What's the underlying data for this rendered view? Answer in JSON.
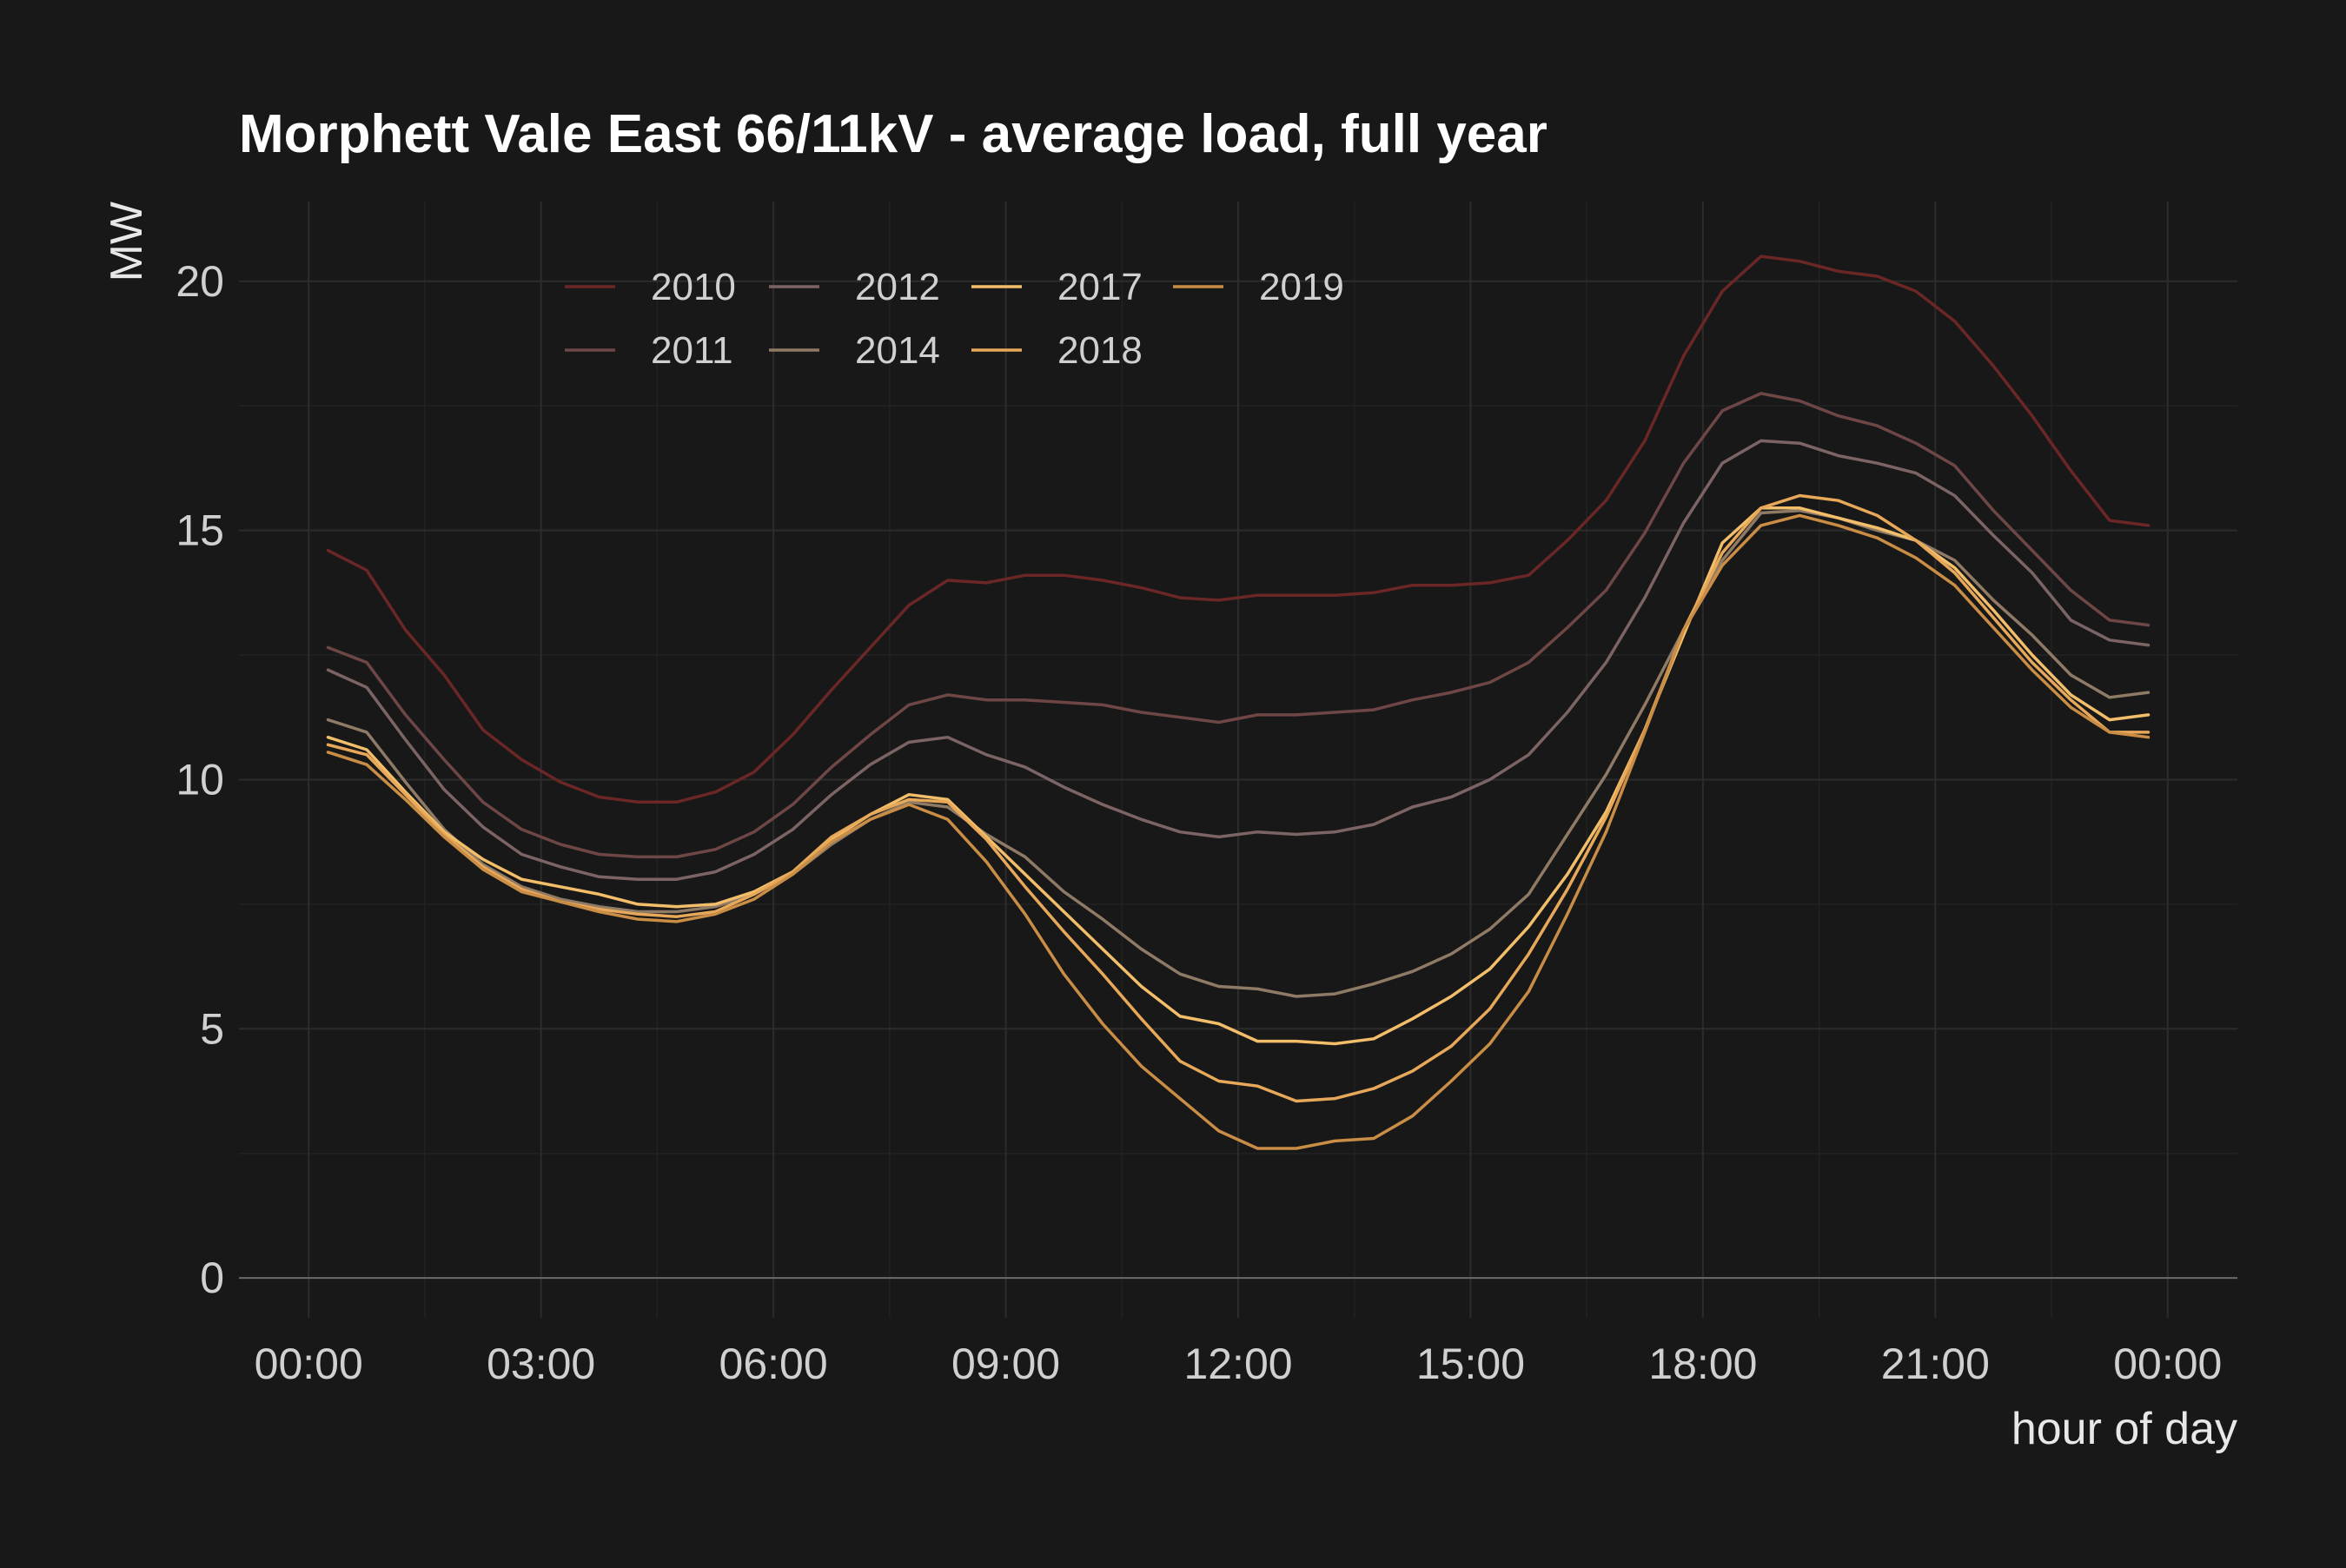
{
  "chart_data": {
    "type": "line",
    "title": "Morphett Vale East 66/11kV - average load, full year",
    "xlabel": "hour of day",
    "ylabel": "MW",
    "xlim": [
      -0.9,
      24.9
    ],
    "ylim": [
      -0.8,
      21.6
    ],
    "x_ticks": [
      {
        "value": 0,
        "label": "00:00"
      },
      {
        "value": 3,
        "label": "03:00"
      },
      {
        "value": 6,
        "label": "06:00"
      },
      {
        "value": 9,
        "label": "09:00"
      },
      {
        "value": 12,
        "label": "12:00"
      },
      {
        "value": 15,
        "label": "15:00"
      },
      {
        "value": 18,
        "label": "18:00"
      },
      {
        "value": 21,
        "label": "21:00"
      },
      {
        "value": 24,
        "label": "00:00"
      }
    ],
    "y_ticks": [
      {
        "value": 0,
        "label": "0"
      },
      {
        "value": 5,
        "label": "5"
      },
      {
        "value": 10,
        "label": "10"
      },
      {
        "value": 15,
        "label": "15"
      },
      {
        "value": 20,
        "label": "20"
      }
    ],
    "grid": true,
    "legend_position": "top-left",
    "x": [
      0.25,
      0.75,
      1.25,
      1.75,
      2.25,
      2.75,
      3.25,
      3.75,
      4.25,
      4.75,
      5.25,
      5.75,
      6.25,
      6.75,
      7.25,
      7.75,
      8.25,
      8.75,
      9.25,
      9.75,
      10.25,
      10.75,
      11.25,
      11.75,
      12.25,
      12.75,
      13.25,
      13.75,
      14.25,
      14.75,
      15.25,
      15.75,
      16.25,
      16.75,
      17.25,
      17.75,
      18.25,
      18.75,
      19.25,
      19.75,
      20.25,
      20.75,
      21.25,
      21.75,
      22.25,
      22.75,
      23.25,
      23.75
    ],
    "series": [
      {
        "name": "2010",
        "color": "#6b2626",
        "values": [
          14.6,
          14.2,
          13.0,
          12.1,
          11.0,
          10.4,
          9.95,
          9.65,
          9.55,
          9.55,
          9.75,
          10.15,
          10.9,
          11.8,
          12.65,
          13.5,
          14.0,
          13.95,
          14.1,
          14.1,
          14.0,
          13.85,
          13.65,
          13.6,
          13.7,
          13.7,
          13.7,
          13.75,
          13.9,
          13.9,
          13.95,
          14.1,
          14.8,
          15.6,
          16.8,
          18.5,
          19.8,
          20.5,
          20.4,
          20.2,
          20.1,
          19.8,
          19.2,
          18.3,
          17.3,
          16.2,
          15.2,
          15.1
        ]
      },
      {
        "name": "2011",
        "color": "#6e4646",
        "values": [
          12.65,
          12.35,
          11.3,
          10.4,
          9.55,
          9.0,
          8.7,
          8.5,
          8.45,
          8.45,
          8.6,
          8.95,
          9.5,
          10.25,
          10.9,
          11.5,
          11.7,
          11.6,
          11.6,
          11.55,
          11.5,
          11.35,
          11.25,
          11.15,
          11.3,
          11.3,
          11.35,
          11.4,
          11.6,
          11.75,
          11.95,
          12.35,
          13.05,
          13.8,
          14.95,
          16.35,
          17.4,
          17.75,
          17.6,
          17.3,
          17.1,
          16.75,
          16.3,
          15.4,
          14.6,
          13.8,
          13.2,
          13.1
        ]
      },
      {
        "name": "2012",
        "color": "#7c6464",
        "values": [
          12.2,
          11.85,
          10.8,
          9.8,
          9.05,
          8.5,
          8.25,
          8.05,
          8.0,
          8.0,
          8.15,
          8.5,
          9.0,
          9.7,
          10.3,
          10.75,
          10.85,
          10.5,
          10.25,
          9.85,
          9.5,
          9.2,
          8.95,
          8.85,
          8.95,
          8.9,
          8.95,
          9.1,
          9.45,
          9.65,
          10.0,
          10.5,
          11.35,
          12.35,
          13.65,
          15.15,
          16.35,
          16.8,
          16.75,
          16.5,
          16.35,
          16.15,
          15.7,
          14.9,
          14.15,
          13.2,
          12.8,
          12.7
        ]
      },
      {
        "name": "2014",
        "color": "#8f7a66",
        "values": [
          11.2,
          10.95,
          9.95,
          9.0,
          8.3,
          7.85,
          7.6,
          7.45,
          7.35,
          7.35,
          7.45,
          7.7,
          8.1,
          8.7,
          9.2,
          9.55,
          9.45,
          8.9,
          8.45,
          7.75,
          7.2,
          6.6,
          6.1,
          5.85,
          5.8,
          5.65,
          5.7,
          5.9,
          6.15,
          6.5,
          7.0,
          7.7,
          8.9,
          10.1,
          11.5,
          13.0,
          14.4,
          15.35,
          15.4,
          15.25,
          15.0,
          14.8,
          14.4,
          13.6,
          12.9,
          12.1,
          11.65,
          11.75
        ]
      },
      {
        "name": "2017",
        "color": "#f2be6a",
        "values": [
          10.85,
          10.6,
          9.75,
          8.95,
          8.4,
          8.0,
          7.85,
          7.7,
          7.5,
          7.45,
          7.5,
          7.75,
          8.15,
          8.8,
          9.3,
          9.7,
          9.6,
          8.85,
          8.1,
          7.35,
          6.6,
          5.85,
          5.25,
          5.1,
          4.75,
          4.75,
          4.7,
          4.8,
          5.2,
          5.65,
          6.2,
          7.05,
          8.1,
          9.35,
          11.0,
          12.9,
          14.75,
          15.45,
          15.45,
          15.25,
          15.05,
          14.8,
          14.25,
          13.4,
          12.5,
          11.7,
          11.2,
          11.3
        ]
      },
      {
        "name": "2018",
        "color": "#e7a859",
        "values": [
          10.7,
          10.5,
          9.7,
          8.9,
          8.25,
          7.8,
          7.55,
          7.4,
          7.3,
          7.25,
          7.35,
          7.7,
          8.15,
          8.85,
          9.3,
          9.6,
          9.55,
          8.8,
          7.85,
          6.95,
          6.1,
          5.2,
          4.35,
          3.95,
          3.85,
          3.55,
          3.6,
          3.8,
          4.15,
          4.65,
          5.4,
          6.5,
          7.8,
          9.25,
          11.0,
          13.0,
          14.55,
          15.45,
          15.7,
          15.6,
          15.3,
          14.8,
          14.15,
          13.25,
          12.35,
          11.6,
          10.95,
          10.95
        ]
      },
      {
        "name": "2019",
        "color": "#c98d45",
        "values": [
          10.55,
          10.3,
          9.6,
          8.85,
          8.2,
          7.75,
          7.55,
          7.35,
          7.2,
          7.15,
          7.3,
          7.6,
          8.1,
          8.75,
          9.2,
          9.5,
          9.2,
          8.35,
          7.3,
          6.1,
          5.1,
          4.25,
          3.6,
          2.95,
          2.6,
          2.6,
          2.75,
          2.8,
          3.25,
          3.95,
          4.7,
          5.75,
          7.3,
          8.95,
          10.95,
          13.0,
          14.3,
          15.1,
          15.3,
          15.1,
          14.85,
          14.45,
          13.9,
          13.05,
          12.2,
          11.45,
          10.95,
          10.85
        ]
      }
    ]
  }
}
